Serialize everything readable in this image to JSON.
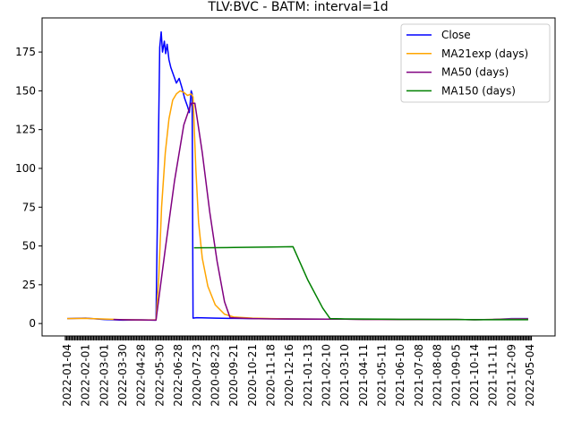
{
  "chart_data": {
    "type": "line",
    "title": "TLV:BVC - BATM: interval=1d",
    "xlabel": "",
    "ylabel": "",
    "ylim": [
      -8,
      197
    ],
    "yticks": [
      0,
      25,
      50,
      75,
      100,
      125,
      150,
      175
    ],
    "x_tick_labels": [
      "2022-01-04",
      "2022-02-01",
      "2022-03-01",
      "2022-03-30",
      "2022-04-28",
      "2022-05-30",
      "2022-06-28",
      "2020-07-23",
      "2020-08-23",
      "2020-09-21",
      "2020-10-21",
      "2020-11-18",
      "2020-12-16",
      "2021-01-13",
      "2021-02-10",
      "2021-03-10",
      "2021-04-11",
      "2021-05-11",
      "2021-06-10",
      "2021-07-08",
      "2021-08-08",
      "2021-09-05",
      "2021-10-14",
      "2021-11-11",
      "2021-12-09",
      "2022-05-04"
    ],
    "x_index_range": [
      0,
      25
    ],
    "legend_position": "top-right",
    "grid": false,
    "series": [
      {
        "name": "Close",
        "color": "#0000ff",
        "points": [
          [
            0,
            3.2
          ],
          [
            1,
            3.5
          ],
          [
            2,
            2.6
          ],
          [
            3,
            2.2
          ],
          [
            4,
            2.3
          ],
          [
            4.8,
            2.2
          ],
          [
            5.0,
            178
          ],
          [
            5.08,
            188
          ],
          [
            5.15,
            175
          ],
          [
            5.25,
            182
          ],
          [
            5.32,
            174
          ],
          [
            5.4,
            180
          ],
          [
            5.5,
            170
          ],
          [
            5.6,
            165
          ],
          [
            5.75,
            160
          ],
          [
            5.9,
            155
          ],
          [
            6.05,
            158
          ],
          [
            6.2,
            152
          ],
          [
            6.35,
            145
          ],
          [
            6.5,
            140
          ],
          [
            6.6,
            136
          ],
          [
            6.7,
            150
          ],
          [
            6.75,
            148
          ],
          [
            6.8,
            3.5
          ],
          [
            7,
            3.8
          ],
          [
            7.5,
            3.6
          ],
          [
            8,
            3.5
          ],
          [
            9,
            3.3
          ],
          [
            10,
            3.2
          ],
          [
            11,
            3.1
          ],
          [
            12,
            3.0
          ],
          [
            13,
            2.9
          ],
          [
            14,
            2.8
          ],
          [
            15,
            2.8
          ],
          [
            16,
            2.7
          ],
          [
            17,
            2.7
          ],
          [
            18,
            2.6
          ],
          [
            19,
            2.6
          ],
          [
            20,
            2.6
          ],
          [
            21,
            2.6
          ],
          [
            22,
            2.5
          ],
          [
            23,
            2.6
          ],
          [
            24,
            3.2
          ],
          [
            24.9,
            3.2
          ]
        ]
      },
      {
        "name": "MA21exp (days)",
        "color": "#ffa500",
        "points": [
          [
            0,
            3.2
          ],
          [
            1,
            3.3
          ],
          [
            2,
            2.9
          ],
          [
            3,
            2.5
          ],
          [
            4,
            2.3
          ],
          [
            4.8,
            2.3
          ],
          [
            4.95,
            30
          ],
          [
            5.1,
            75
          ],
          [
            5.3,
            110
          ],
          [
            5.5,
            132
          ],
          [
            5.7,
            144
          ],
          [
            5.9,
            148
          ],
          [
            6.1,
            150
          ],
          [
            6.3,
            149
          ],
          [
            6.5,
            147
          ],
          [
            6.7,
            148
          ],
          [
            6.8,
            146
          ],
          [
            6.95,
            100
          ],
          [
            7.1,
            65
          ],
          [
            7.3,
            42
          ],
          [
            7.6,
            24
          ],
          [
            8.0,
            12
          ],
          [
            8.5,
            6
          ],
          [
            9,
            4.2
          ],
          [
            10,
            3.5
          ],
          [
            11,
            3.2
          ],
          [
            12,
            3.0
          ],
          [
            13,
            2.9
          ],
          [
            14,
            2.8
          ],
          [
            15,
            2.8
          ],
          [
            16,
            2.7
          ],
          [
            17,
            2.7
          ],
          [
            18,
            2.6
          ],
          [
            19,
            2.6
          ],
          [
            20,
            2.6
          ],
          [
            21,
            2.6
          ],
          [
            22,
            2.5
          ],
          [
            23,
            2.6
          ],
          [
            24,
            2.9
          ],
          [
            24.9,
            3.0
          ]
        ]
      },
      {
        "name": "MA50 (days)",
        "color": "#800080",
        "points": [
          [
            2.5,
            2.6
          ],
          [
            3,
            2.5
          ],
          [
            4,
            2.3
          ],
          [
            4.8,
            2.2
          ],
          [
            5.3,
            48
          ],
          [
            5.8,
            92
          ],
          [
            6.3,
            128
          ],
          [
            6.7,
            142
          ],
          [
            6.9,
            142
          ],
          [
            7.3,
            110
          ],
          [
            7.7,
            72
          ],
          [
            8.1,
            40
          ],
          [
            8.5,
            14
          ],
          [
            8.8,
            3.8
          ],
          [
            9.5,
            3.4
          ],
          [
            10,
            3.2
          ],
          [
            11,
            3.0
          ],
          [
            12,
            2.9
          ],
          [
            13,
            2.8
          ],
          [
            14,
            2.8
          ],
          [
            15,
            2.8
          ],
          [
            16,
            2.7
          ],
          [
            17,
            2.7
          ],
          [
            18,
            2.6
          ],
          [
            19,
            2.6
          ],
          [
            20,
            2.6
          ],
          [
            21,
            2.6
          ],
          [
            22,
            2.5
          ],
          [
            23,
            2.6
          ],
          [
            24,
            2.7
          ],
          [
            24.9,
            2.8
          ]
        ]
      },
      {
        "name": "MA150 (days)",
        "color": "#008000",
        "points": [
          [
            6.85,
            48.8
          ],
          [
            8,
            48.9
          ],
          [
            9,
            49.0
          ],
          [
            10,
            49.2
          ],
          [
            11,
            49.3
          ],
          [
            12.2,
            49.5
          ],
          [
            13,
            28
          ],
          [
            13.8,
            10
          ],
          [
            14.2,
            3.2
          ],
          [
            15,
            3.0
          ],
          [
            16,
            2.9
          ],
          [
            17,
            2.8
          ],
          [
            18,
            2.7
          ],
          [
            19,
            2.7
          ],
          [
            20,
            2.6
          ],
          [
            21,
            2.6
          ],
          [
            22,
            2.5
          ],
          [
            23,
            2.5
          ],
          [
            24,
            2.5
          ],
          [
            24.9,
            2.5
          ]
        ]
      }
    ]
  }
}
